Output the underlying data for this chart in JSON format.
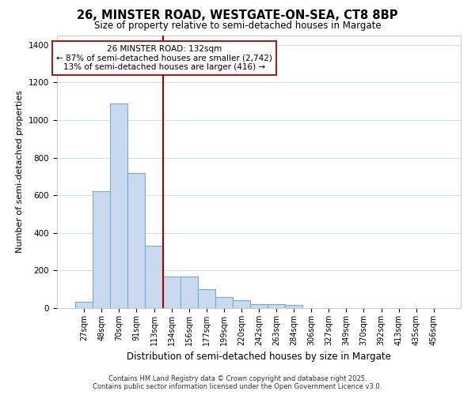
{
  "title1": "26, MINSTER ROAD, WESTGATE-ON-SEA, CT8 8BP",
  "title2": "Size of property relative to semi-detached houses in Margate",
  "xlabel": "Distribution of semi-detached houses by size in Margate",
  "ylabel": "Number of semi-detached properties",
  "categories": [
    "27sqm",
    "48sqm",
    "70sqm",
    "91sqm",
    "113sqm",
    "134sqm",
    "156sqm",
    "177sqm",
    "199sqm",
    "220sqm",
    "242sqm",
    "263sqm",
    "284sqm",
    "306sqm",
    "327sqm",
    "349sqm",
    "370sqm",
    "392sqm",
    "413sqm",
    "435sqm",
    "456sqm"
  ],
  "values": [
    35,
    620,
    1090,
    720,
    330,
    170,
    170,
    100,
    60,
    40,
    20,
    20,
    15,
    0,
    0,
    0,
    0,
    0,
    0,
    0,
    0
  ],
  "bar_color": "#c9d9f0",
  "bar_edge_color": "#7aaad0",
  "vline_index": 5,
  "vline_color": "#aa0000",
  "background_color": "#ffffff",
  "plot_bg_color": "#ffffff",
  "grid_color": "#c8d8f0",
  "annotation_line1": "26 MINSTER ROAD: 132sqm",
  "annotation_line2": "← 87% of semi-detached houses are smaller (2,742)",
  "annotation_line3": "13% of semi-detached houses are larger (416) →",
  "annotation_box_color": "#aa0000",
  "footer_line1": "Contains HM Land Registry data © Crown copyright and database right 2025.",
  "footer_line2": "Contains public sector information licensed under the Open Government Licence v3.0.",
  "ylim": [
    0,
    1450
  ],
  "yticks": [
    0,
    200,
    400,
    600,
    800,
    1000,
    1200,
    1400
  ]
}
